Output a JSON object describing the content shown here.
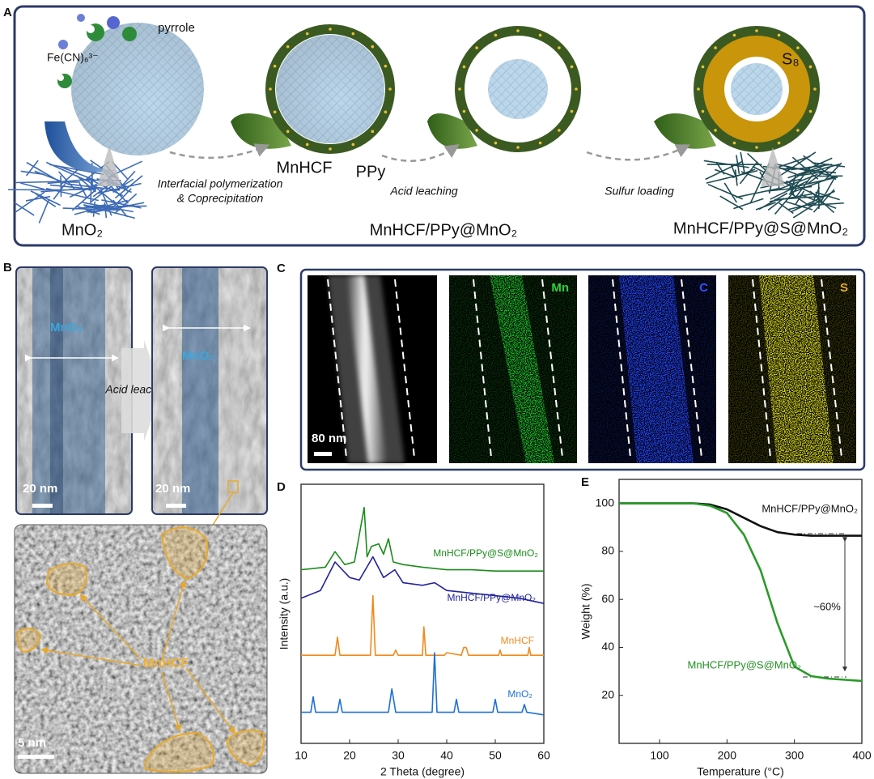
{
  "panels": {
    "a": {
      "label": "A",
      "pyrrole": "pyrrole",
      "ferricyanide": "Fe(CN)₆³⁻",
      "mno2": "MnO₂",
      "step1_line1": "Interfacial polymerization",
      "step1_line2": "& Coprecipitation",
      "mnhcf": "MnHCF",
      "ppy": "PPy",
      "step2": "Acid leaching",
      "step3": "Sulfur loading",
      "s8": "S₈",
      "product1": "MnHCF/PPy@MnO₂",
      "product2": "MnHCF/PPy@S@MnO₂"
    },
    "b": {
      "label": "B",
      "mno2_before": "MnO₂",
      "mno2_after": "MnO₂",
      "step": "Acid leaching",
      "scale_before": "20 nm",
      "scale_after": "20 nm",
      "mnhcf": "MnHCF",
      "scale_hrtem": "5 nm"
    },
    "c": {
      "label": "C",
      "scale": "80 nm",
      "maps": [
        "Mn",
        "C",
        "S"
      ]
    }
  },
  "chart_data": [
    {
      "type": "line",
      "panel_label": "D",
      "xlabel": "2 Theta (degree)",
      "ylabel": "Intensity (a.u.)",
      "xlim": [
        10,
        60
      ],
      "ylim": [
        0,
        100
      ],
      "xticks": [
        10,
        20,
        30,
        40,
        50,
        60
      ],
      "series": [
        {
          "name": "MnHCF/PPy@S@MnO₂",
          "color": "#1a8c1a",
          "x": [
            10,
            15,
            17,
            19,
            21,
            23,
            23.6,
            24.5,
            26,
            27,
            28,
            29,
            31,
            35,
            40,
            45,
            50,
            55,
            60
          ],
          "values": [
            67,
            68,
            74,
            69,
            70,
            91,
            72,
            76,
            77,
            73,
            79,
            70,
            69,
            68,
            67,
            67,
            66.5,
            66.5,
            66.5
          ]
        },
        {
          "name": "MnHCF/PPy@MnO₂",
          "color": "#22229e",
          "x": [
            10,
            14,
            17,
            20,
            22,
            24.8,
            27,
            29.3,
            31,
            35,
            37.5,
            40,
            45,
            50,
            55,
            60
          ],
          "values": [
            56,
            59,
            70,
            64,
            63,
            72,
            64,
            67,
            62,
            61,
            62,
            59,
            58,
            57,
            56,
            54
          ]
        },
        {
          "name": "MnHCF",
          "color": "#f08a1c",
          "x": [
            10,
            17,
            17.5,
            18,
            24.3,
            24.8,
            25.3,
            29,
            29.5,
            30,
            35,
            35.3,
            35.7,
            39.5,
            40,
            43,
            43.5,
            44,
            44.5,
            50.7,
            51,
            51.3,
            56.7,
            57,
            57.3,
            60
          ],
          "values": [
            34,
            34,
            41,
            34,
            34,
            57,
            34,
            34,
            36,
            34,
            34,
            45,
            34,
            34,
            35,
            34,
            37,
            37,
            34,
            34,
            36,
            34,
            34,
            37,
            34,
            34
          ]
        },
        {
          "name": "MnO₂",
          "color": "#1f6fd6",
          "x": [
            10,
            12,
            12.5,
            13,
            17.5,
            18,
            18.5,
            28,
            28.7,
            29.5,
            37,
            37.5,
            38,
            41.5,
            42,
            42.5,
            49.5,
            50,
            50.5,
            55.5,
            56,
            56.5,
            60
          ],
          "values": [
            12,
            12,
            18,
            12,
            12,
            17,
            12,
            12,
            21,
            12,
            12,
            35,
            12,
            12,
            17,
            12,
            12,
            17,
            12,
            12,
            15,
            12,
            11
          ]
        }
      ]
    },
    {
      "type": "line",
      "panel_label": "E",
      "xlabel": "Temperature (°C)",
      "ylabel": "Weight (%)",
      "xlim": [
        40,
        400
      ],
      "ylim": [
        0,
        110
      ],
      "xticks": [
        100,
        200,
        300,
        400
      ],
      "yticks": [
        20,
        40,
        60,
        80,
        100
      ],
      "x": [
        40,
        100,
        150,
        175,
        200,
        225,
        250,
        275,
        300,
        325,
        350,
        375,
        400
      ],
      "series": [
        {
          "name": "MnHCF/PPy@MnO₂",
          "color": "#111111",
          "values": [
            100,
            100,
            100,
            99.5,
            97.5,
            94,
            90.5,
            88,
            87,
            86.5,
            86.5,
            86.5,
            86.5
          ]
        },
        {
          "name": "MnHCF/PPy@S@MnO₂",
          "color": "#2a9a2a",
          "values": [
            100,
            100,
            100,
            99,
            96,
            87,
            72,
            50,
            32,
            28,
            27,
            26.5,
            26
          ]
        }
      ],
      "annotations": [
        "~60%"
      ]
    }
  ]
}
